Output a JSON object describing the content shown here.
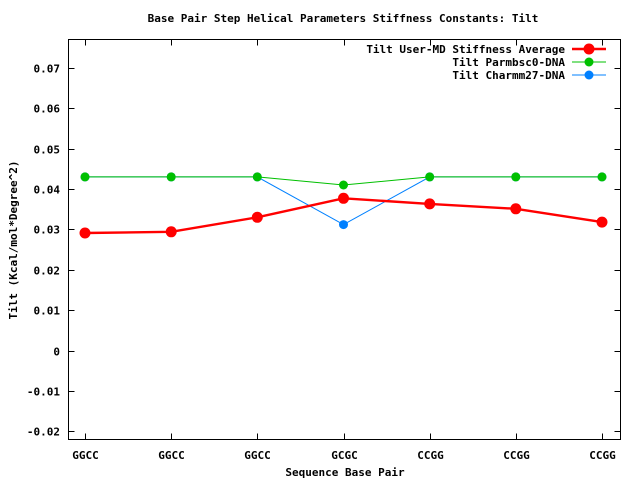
{
  "chart_data": {
    "type": "line",
    "title": "Base Pair Step Helical Parameters Stiffness Constants: Tilt",
    "xlabel": "Sequence Base Pair",
    "ylabel": "Tilt (Kcal/mol*Degree^2)",
    "categories": [
      "GGCC",
      "GGCC",
      "GGCC",
      "GCGC",
      "CCGG",
      "CCGG",
      "CCGG"
    ],
    "ylim": [
      -0.022,
      0.077
    ],
    "yticks": [
      -0.02,
      -0.01,
      0,
      0.01,
      0.02,
      0.03,
      0.04,
      0.05,
      0.06,
      0.07
    ],
    "ytick_labels": [
      "-0.02",
      "-0.01",
      "0",
      "0.01",
      "0.02",
      "0.03",
      "0.04",
      "0.05",
      "0.06",
      "0.07"
    ],
    "grid": false,
    "legend_position": "top-right",
    "series": [
      {
        "name": "Tilt User-MD Stiffness Average",
        "color": "#ff0000",
        "values": [
          0.0291,
          0.0294,
          0.033,
          0.0377,
          0.0363,
          0.0351,
          0.0318
        ]
      },
      {
        "name": "Tilt Parmbsc0-DNA",
        "color": "#00c000",
        "values": [
          0.043,
          0.043,
          0.043,
          0.041,
          0.043,
          0.043,
          0.043
        ]
      },
      {
        "name": "Tilt Charmm27-DNA",
        "color": "#0080ff",
        "values": [
          0.043,
          0.043,
          0.043,
          0.0312,
          0.043,
          0.043,
          0.043
        ]
      }
    ]
  }
}
